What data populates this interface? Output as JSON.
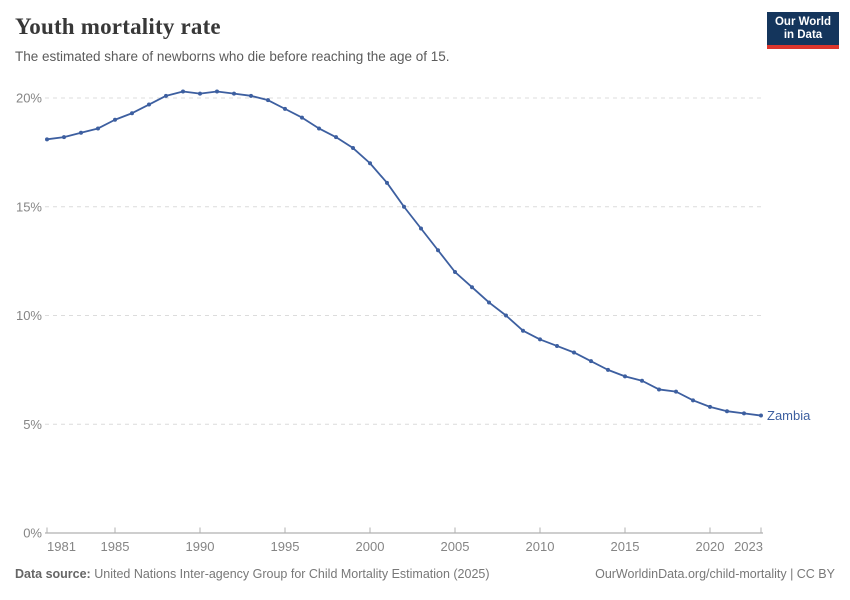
{
  "header": {
    "title": "Youth mortality rate",
    "subtitle": "The estimated share of newborns who die before reaching the age of 15.",
    "logo": {
      "line1": "Our World",
      "line2": "in Data",
      "bg_color": "#14355c",
      "accent_color": "#dd352c"
    }
  },
  "chart_data": {
    "type": "line",
    "title": "Youth mortality rate",
    "xlabel": "",
    "ylabel": "",
    "unit": "%",
    "x": [
      1981,
      1982,
      1983,
      1984,
      1985,
      1986,
      1987,
      1988,
      1989,
      1990,
      1991,
      1992,
      1993,
      1994,
      1995,
      1996,
      1997,
      1998,
      1999,
      2000,
      2001,
      2002,
      2003,
      2004,
      2005,
      2006,
      2007,
      2008,
      2009,
      2010,
      2011,
      2012,
      2013,
      2014,
      2015,
      2016,
      2017,
      2018,
      2019,
      2020,
      2021,
      2022,
      2023
    ],
    "series": [
      {
        "name": "Zambia",
        "color": "#3d5fa0",
        "values": [
          18.1,
          18.2,
          18.4,
          18.6,
          19.0,
          19.3,
          19.7,
          20.1,
          20.3,
          20.2,
          20.3,
          20.2,
          20.1,
          19.9,
          19.5,
          19.1,
          18.6,
          18.2,
          17.7,
          17.0,
          16.1,
          15.0,
          14.0,
          13.0,
          12.0,
          11.3,
          10.6,
          10.0,
          9.3,
          8.9,
          8.6,
          8.3,
          7.9,
          7.5,
          7.2,
          7.0,
          6.6,
          6.5,
          6.1,
          5.8,
          5.6,
          5.5,
          5.4
        ]
      }
    ],
    "end_label": "Zambia",
    "x_ticks": [
      1981,
      1985,
      1990,
      1995,
      2000,
      2005,
      2010,
      2015,
      2020,
      2023
    ],
    "y_ticks": [
      0,
      5,
      10,
      15,
      20
    ],
    "y_tick_suffix": "%",
    "xlim": [
      1981,
      2023
    ],
    "ylim": [
      0,
      20
    ],
    "grid": "horizontal-dashed",
    "legend_position": "end-of-line",
    "axis_color": "#9e9e9e",
    "grid_color": "#dcdcdc",
    "tick_label_color": "#858585"
  },
  "footer": {
    "source_label": "Data source:",
    "source_text": "United Nations Inter-agency Group for Child Mortality Estimation (2025)",
    "link_text": "OurWorldinData.org/child-mortality | CC BY"
  }
}
